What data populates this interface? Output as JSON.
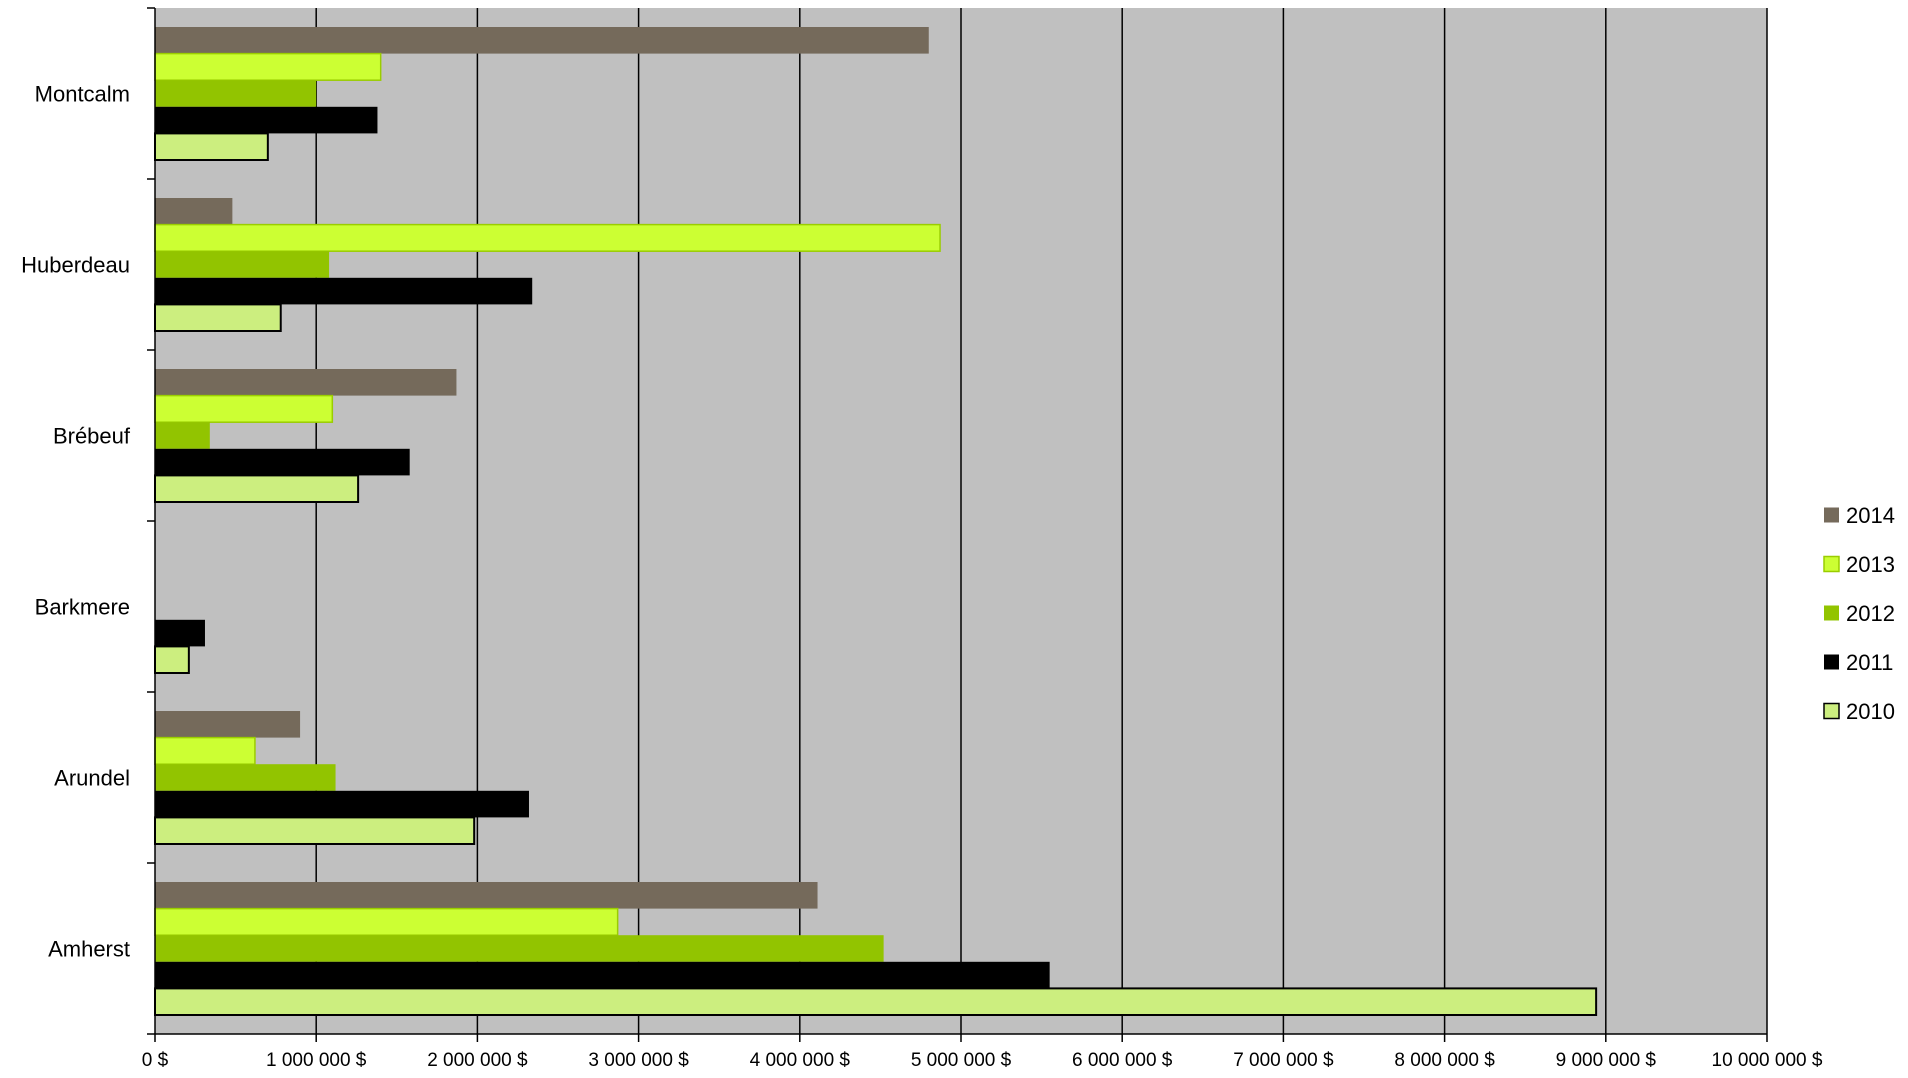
{
  "chart_data": {
    "type": "bar",
    "orientation": "horizontal",
    "categories": [
      "Montcalm",
      "Huberdeau",
      "Brébeuf",
      "Barkmere",
      "Arundel",
      "Amherst"
    ],
    "series": [
      {
        "name": "2014",
        "color": "#756a5b",
        "values": [
          4800000,
          480000,
          1870000,
          0,
          900000,
          4110000
        ]
      },
      {
        "name": "2013",
        "color": "#ccff33",
        "values": [
          1400000,
          4870000,
          1100000,
          0,
          620000,
          2870000
        ]
      },
      {
        "name": "2012",
        "color": "#92c400",
        "values": [
          1000000,
          1080000,
          340000,
          0,
          1120000,
          4520000
        ]
      },
      {
        "name": "2011",
        "color": "#000000",
        "values": [
          1380000,
          2340000,
          1580000,
          310000,
          2320000,
          5550000
        ]
      },
      {
        "name": "2010",
        "color": "#ccee7f",
        "values": [
          700000,
          780000,
          1260000,
          210000,
          1980000,
          8940000
        ]
      }
    ],
    "xlim": [
      0,
      10000000
    ],
    "xticks": [
      0,
      1000000,
      2000000,
      3000000,
      4000000,
      5000000,
      6000000,
      7000000,
      8000000,
      9000000,
      10000000
    ],
    "xtick_labels": [
      "0 $",
      "1 000 000 $",
      "2 000 000 $",
      "3 000 000 $",
      "4 000 000 $",
      "5 000 000 $",
      "6 000 000 $",
      "7 000 000 $",
      "8 000 000 $",
      "9 000 000 $",
      "10 000 000 $"
    ],
    "title": "",
    "xlabel": "",
    "ylabel": "",
    "grid": "vertical",
    "plot_background": "#c0c0c0",
    "legend_position": "right",
    "legend_order": [
      "2014",
      "2013",
      "2012",
      "2011",
      "2010"
    ]
  }
}
